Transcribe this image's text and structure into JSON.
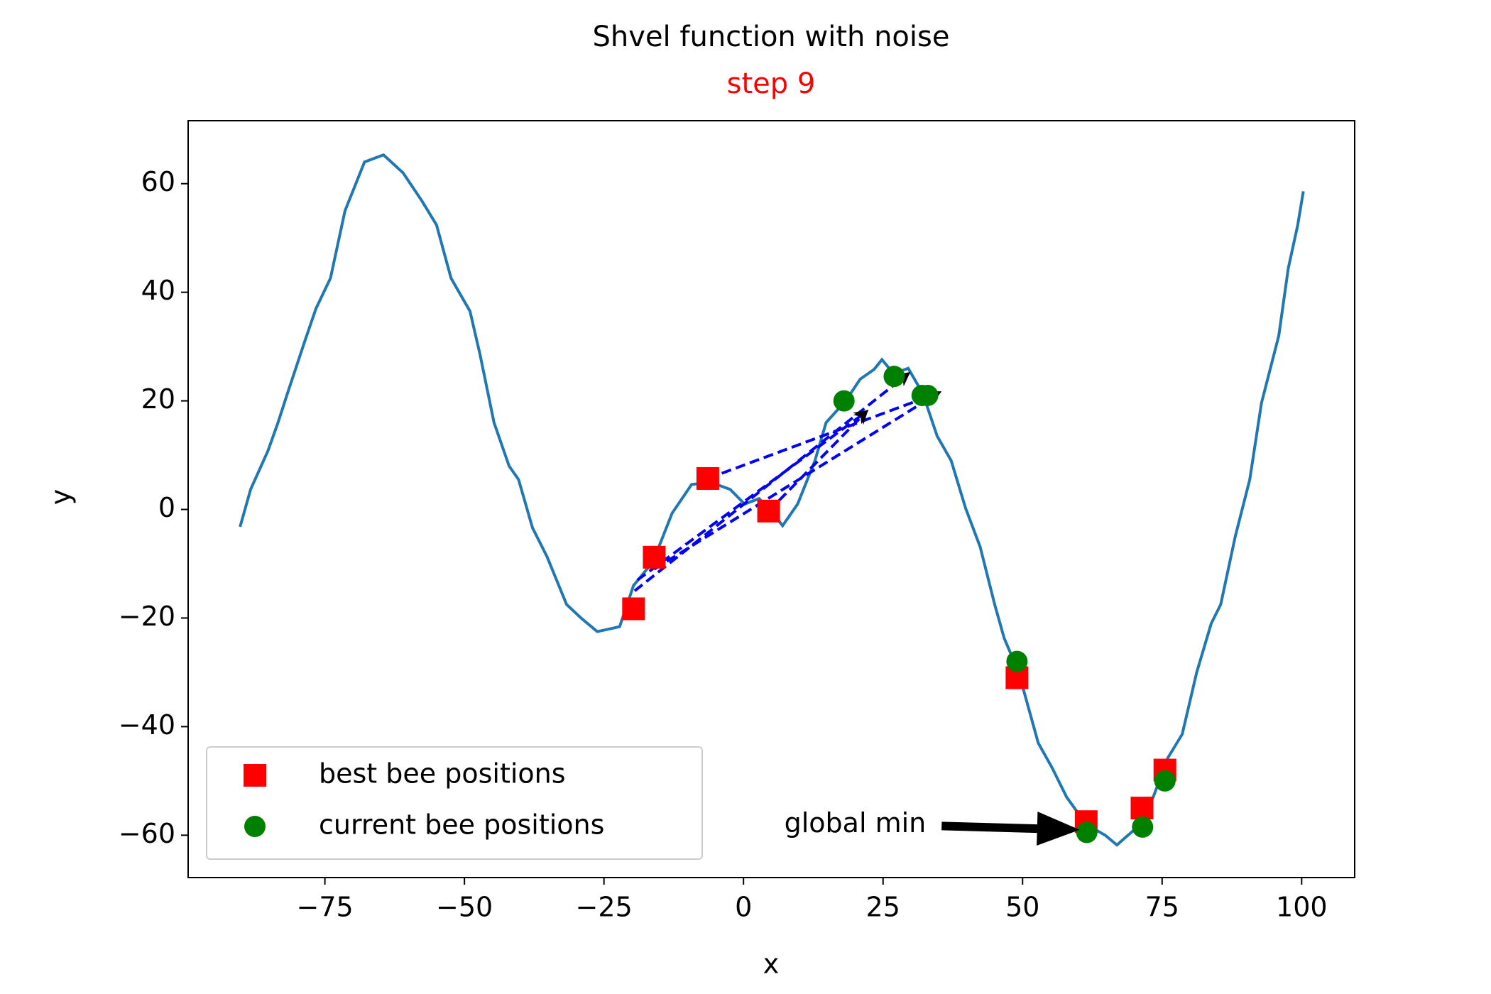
{
  "chart_data": {
    "type": "line",
    "title": "Shvel function with noise",
    "subtitle": "step 9",
    "subtitle_color": "#ff0000",
    "x_label": "x",
    "y_label": "y",
    "xlim": [
      -99.5,
      109.5
    ],
    "ylim": [
      -67.8,
      71.6
    ],
    "xticks": [
      {
        "value": -75,
        "label": "−75"
      },
      {
        "value": -50,
        "label": "−50"
      },
      {
        "value": -25,
        "label": "−25"
      },
      0,
      25,
      50,
      75,
      100
    ],
    "yticks": [
      {
        "value": -60,
        "label": "−60"
      },
      {
        "value": -40,
        "label": "−40"
      },
      {
        "value": -20,
        "label": "−20"
      },
      0,
      20,
      40,
      60
    ],
    "legend_position": "lower left",
    "curve": {
      "color": "#1f77b4",
      "x": [
        -90.2,
        -88.3,
        -85.2,
        -83.4,
        -81.7,
        -78.6,
        -76.6,
        -74,
        -71.4,
        -67.9,
        -64.5,
        -61,
        -57.6,
        -55,
        -52.4,
        -49,
        -47.2,
        -44.7,
        -42,
        -40.3,
        -37.8,
        -35.2,
        -31.7,
        -29.1,
        -26.2,
        -22.2,
        -19.7,
        -16.2,
        -12.8,
        -9.3,
        -5.9,
        -2.4,
        0.2,
        2.8,
        5.3,
        7,
        9.7,
        12.8,
        14.8,
        18.3,
        20.9,
        23.4,
        24.8,
        26.9,
        29.5,
        32.1,
        34.7,
        37.2,
        39.8,
        42.4,
        45,
        46.7,
        49.3,
        52.8,
        55.3,
        57.9,
        61.4,
        64.8,
        66.9,
        70,
        73.4,
        76,
        78.6,
        81.2,
        83.8,
        85.5,
        88.1,
        90.7,
        92.8,
        95.9,
        97.6,
        99.3,
        100.3
      ],
      "y": [
        -3.2,
        3.7,
        10.8,
        16,
        21.4,
        31,
        37,
        42.6,
        55,
        64,
        65.3,
        62,
        56.8,
        52.4,
        42.6,
        36.5,
        28.5,
        16,
        8,
        5.5,
        -3.4,
        -8.7,
        -17.5,
        -20,
        -22.5,
        -21.6,
        -14,
        -9.6,
        -0.7,
        4.6,
        5,
        3.7,
        1,
        2,
        -0.7,
        -3,
        1,
        9,
        16,
        20,
        24,
        25.8,
        27.6,
        25,
        26,
        21.4,
        13.5,
        9,
        0.2,
        -6.9,
        -17.5,
        -23.7,
        -30,
        -43,
        -47.6,
        -53,
        -58,
        -60,
        -61.8,
        -59,
        -53,
        -45.8,
        -41.4,
        -30,
        -21,
        -17.5,
        -5,
        5.5,
        19.6,
        32,
        44.4,
        52.4,
        58.6
      ]
    },
    "velocities": {
      "color": "#0000ff",
      "segments": [
        [
          -19.5,
          -15,
          29.5,
          25
        ],
        [
          -16,
          -11,
          35,
          21.5
        ],
        [
          -6.4,
          5.7,
          35,
          21.5
        ],
        [
          -19,
          -13,
          22,
          18
        ],
        [
          4.5,
          -0.3,
          22,
          18
        ]
      ]
    },
    "series": [
      {
        "name": "best bee positions",
        "color": "#ff0000",
        "marker": "square",
        "x": [
          -19.7,
          -16,
          -6.4,
          4.5,
          49,
          61.4,
          71.4,
          75.5
        ],
        "values": [
          -18.3,
          -8.8,
          5.7,
          -0.3,
          -31,
          -57.5,
          -55,
          -48
        ]
      },
      {
        "name": "current bee positions",
        "color": "#008000",
        "marker": "circle",
        "x": [
          18,
          27,
          32,
          33,
          49,
          61.5,
          71.5,
          75.5
        ],
        "values": [
          20,
          24.5,
          21,
          21,
          -28,
          -59.5,
          -58.5,
          -50
        ]
      }
    ],
    "annotation": {
      "text": "global min",
      "xy": [
        61,
        -59
      ],
      "xytext": [
        35.5,
        -58.3
      ]
    }
  }
}
